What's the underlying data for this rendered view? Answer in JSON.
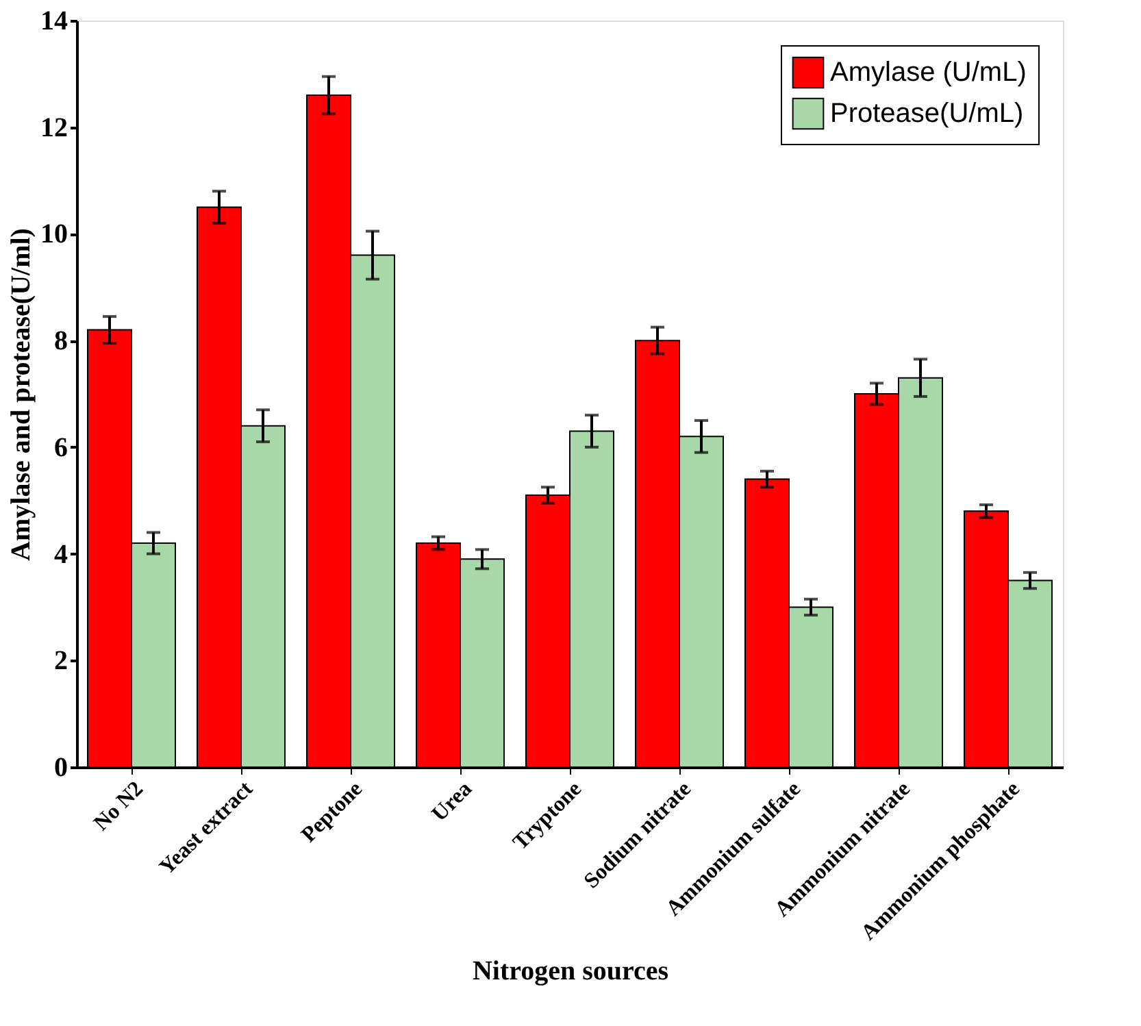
{
  "chart_data": {
    "type": "bar",
    "xlabel": "Nitrogen sources",
    "ylabel": "Amylase and protease(U/ml)",
    "categories": [
      "No N2",
      "Yeast extract",
      "Peptone",
      "Urea",
      "Tryptone",
      "Sodium nitrate",
      "Ammonium sulfate",
      "Ammonium nitrate",
      "Ammonium phosphate"
    ],
    "series": [
      {
        "name": "Amylase (U/mL)",
        "color": "#ff0000",
        "values": [
          8.2,
          10.5,
          12.6,
          4.2,
          5.1,
          8.0,
          5.4,
          7.0,
          4.8
        ],
        "errors": [
          0.25,
          0.3,
          0.35,
          0.12,
          0.15,
          0.25,
          0.15,
          0.2,
          0.12
        ]
      },
      {
        "name": "Protease(U/mL)",
        "color": "#a8d8a8",
        "values": [
          4.2,
          6.4,
          9.6,
          3.9,
          6.3,
          6.2,
          3.0,
          7.3,
          3.5
        ],
        "errors": [
          0.2,
          0.3,
          0.45,
          0.18,
          0.3,
          0.3,
          0.15,
          0.35,
          0.15
        ]
      }
    ],
    "ylim": [
      0,
      14
    ],
    "yticks": [
      0,
      2,
      4,
      6,
      8,
      10,
      12,
      14
    ],
    "grid": false,
    "legend": "top right"
  }
}
